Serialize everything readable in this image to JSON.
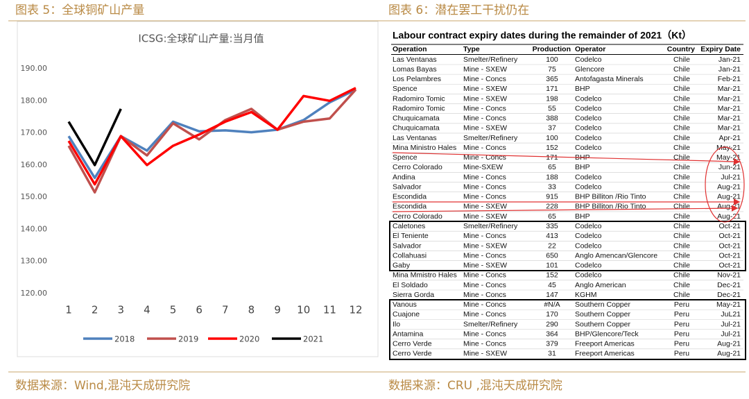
{
  "left": {
    "caption": "图表 5：全球铜矿山产量",
    "source": "数据来源：Wind,混沌天成研究院"
  },
  "chart_data": {
    "type": "line",
    "title": "ICSG:全球矿山产量:当月值",
    "categories": [
      1,
      2,
      3,
      4,
      5,
      6,
      7,
      8,
      9,
      10,
      11,
      12
    ],
    "series": [
      {
        "name": "2018",
        "color": "#4f81bd",
        "values": [
          169,
          156,
          169,
          164.5,
          173.5,
          170.5,
          170.8,
          170.2,
          171,
          174,
          179.5,
          183.5
        ]
      },
      {
        "name": "2019",
        "color": "#c0504d",
        "values": [
          166,
          151.5,
          169,
          163,
          173,
          168,
          174,
          177.5,
          171,
          173.5,
          174.5,
          183.5
        ]
      },
      {
        "name": "2020",
        "color": "#ff0000",
        "values": [
          167.5,
          154,
          169,
          160,
          166,
          169.5,
          173.5,
          176.5,
          171,
          181.5,
          180,
          184
        ]
      },
      {
        "name": "2021",
        "color": "#000000",
        "values": [
          173.5,
          160,
          177.5,
          null,
          null,
          null,
          null,
          null,
          null,
          null,
          null,
          null
        ]
      }
    ],
    "ylim": [
      120,
      190
    ],
    "yticks": [
      {
        "value": 120,
        "label": "120.00"
      },
      {
        "value": 130,
        "label": "130.00"
      },
      {
        "value": 140,
        "label": "140.00"
      },
      {
        "value": 150,
        "label": "150.00"
      },
      {
        "value": 160,
        "label": "160.00"
      },
      {
        "value": 170,
        "label": "170.00"
      },
      {
        "value": 180,
        "label": "180.00"
      },
      {
        "value": 190,
        "label": "190.00"
      }
    ],
    "legend": "bottom",
    "grid": false
  },
  "right": {
    "caption": "图表 6：潜在罢工干扰仍在",
    "source": "数据来源：CRU ,混沌天成研究院",
    "table": {
      "title": "Labour contract expiry dates during the remainder of  2021（Kt）",
      "columns": [
        "Operation",
        "Type",
        "Production",
        "Operator",
        "Country",
        "Expiry Date"
      ],
      "rows": [
        [
          "Las Ventanas",
          "Smelter/Refinery",
          "100",
          "Codelco",
          "Chile",
          "Jan-21"
        ],
        [
          "Lomas Bayas",
          "Mine - SXEW",
          "75",
          "Glencore",
          "Chile",
          "Jan-21"
        ],
        [
          "Los Pelambres",
          "Mine - Concs",
          "365",
          "Antofagasta Minerals",
          "Chile",
          "Feb-21"
        ],
        [
          "Spence",
          "Mine - SXEW",
          "171",
          "BHP",
          "Chile",
          "Mar-21"
        ],
        [
          "Radomiro Tomic",
          "Mine - SXEW",
          "198",
          "Codelco",
          "Chile",
          "Mar-21"
        ],
        [
          "Radomiro Tomic",
          "Mine - Concs",
          "55",
          "Codelco",
          "Chile",
          "Mar-21"
        ],
        [
          "Chuquicamata",
          "Mine - Concs",
          "388",
          "Codelco",
          "Chile",
          "Mar-21"
        ],
        [
          "Chuquicamata",
          "Mine - SXEW",
          "37",
          "Codelco",
          "Chile",
          "Mar-21"
        ],
        [
          "Las Ventanas",
          "Smelter/Refinery",
          "100",
          "Codelco",
          "Chile",
          "Apr-21"
        ],
        [
          "Mina Ministro Hales",
          "Mine - Concs",
          "152",
          "Codelco",
          "Chile",
          "May-21"
        ],
        [
          "Spence",
          "Mine - Concs",
          "171",
          "BHP",
          "Chile",
          "May-21"
        ],
        [
          "Cerro Colorado",
          "Mine-SXEW",
          "65",
          "BHP",
          "Chile",
          "Jun-21"
        ],
        [
          "Andina",
          "Mine - Concs",
          "188",
          "Codelco",
          "Chile",
          "Jul-21"
        ],
        [
          "Salvador",
          "Mine - Concs",
          "33",
          "Codelco",
          "Chile",
          "Aug-21"
        ],
        [
          "Escondida",
          "Mine - Concs",
          "915",
          "BHP Billiton /Rio Tinto",
          "Chile",
          "Aug-21"
        ],
        [
          "Escondida",
          "Mine - SXEW",
          "228",
          "BHP Billiton /Rio Tinto",
          "Chile",
          "Aug-21"
        ],
        [
          "Cerro Colorado",
          "Mine - SXEW",
          "65",
          "BHP",
          "Chile",
          "Aug-21"
        ],
        [
          "Caletones",
          "Smelter/Refinery",
          "335",
          "Codelco",
          "Chile",
          "Oct-21"
        ],
        [
          "El Teniente",
          "Mine - Concs",
          "413",
          "Codelco",
          "Chile",
          "Oct-21"
        ],
        [
          "Salvador",
          "Mine - SXEW",
          "22",
          "Codelco",
          "Chile",
          "Oct-21"
        ],
        [
          "Collahuasi",
          "Mine - Concs",
          "650",
          "Anglo Amencan/Glencore",
          "Chile",
          "Oct-21"
        ],
        [
          "Gaby",
          "Mine - SXEW",
          "101",
          "Codelco",
          "Chile",
          "Oct-21"
        ],
        [
          "Mina Mmistro Hales",
          "Mine - Concs",
          "152",
          "Codelco",
          "Chile",
          "Nov-21"
        ],
        [
          "El Soldado",
          "Mine - Concs",
          "45",
          "Anglo American",
          "Chile",
          "Dec-21"
        ],
        [
          "Sierra Gorda",
          "Mine - Concs",
          "147",
          "KGHM",
          "Chile",
          "Dec-21"
        ],
        [
          "Vanous",
          "Mine - Concs",
          "#N/A",
          "Southern Copper",
          "Peru",
          "May-21"
        ],
        [
          "Cuajone",
          "Mine - Concs",
          "170",
          "Southern Copper",
          "Peru",
          "JuL21"
        ],
        [
          "Ilo",
          "Smelter/Refinery",
          "290",
          "Southern Copper",
          "Peru",
          "Jul-21"
        ],
        [
          "Antamina",
          "Mine - Concs",
          "364",
          "BHP/Glencore/Teck",
          "Peru",
          "Jul-21"
        ],
        [
          "Cerro Verde",
          "Mine - Concs",
          "379",
          "Freeport Americas",
          "Peru",
          "Aug-21"
        ],
        [
          "Cerro Verde",
          "Mine - SXEW",
          "31",
          "Freeport Americas",
          "Peru",
          "Aug-21"
        ]
      ]
    }
  }
}
